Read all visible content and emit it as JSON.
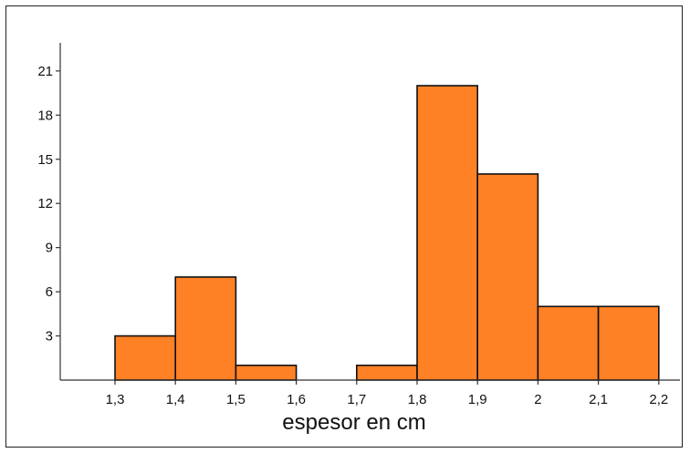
{
  "chart_data": {
    "type": "bar",
    "subtype": "histogram",
    "title": "",
    "xlabel": "espesor en cm",
    "ylabel": "",
    "x_ticks": [
      "1,3",
      "1,4",
      "1,5",
      "1,6",
      "1,7",
      "1,8",
      "1,9",
      "2",
      "2,1",
      "2,2"
    ],
    "y_ticks": [
      "3",
      "6",
      "9",
      "12",
      "15",
      "18",
      "21"
    ],
    "bins": [
      {
        "from": 1.3,
        "to": 1.4,
        "count": 3
      },
      {
        "from": 1.4,
        "to": 1.5,
        "count": 7
      },
      {
        "from": 1.5,
        "to": 1.6,
        "count": 1
      },
      {
        "from": 1.6,
        "to": 1.7,
        "count": 0
      },
      {
        "from": 1.7,
        "to": 1.8,
        "count": 1
      },
      {
        "from": 1.8,
        "to": 1.9,
        "count": 20
      },
      {
        "from": 1.9,
        "to": 2.0,
        "count": 14
      },
      {
        "from": 2.0,
        "to": 2.1,
        "count": 5
      },
      {
        "from": 2.1,
        "to": 2.2,
        "count": 5
      }
    ],
    "xlim": [
      1.3,
      2.2
    ],
    "ylim": [
      0,
      23
    ],
    "grid": false,
    "legend": "none",
    "bar_color": "#FF8126",
    "edge_color": "#111111"
  }
}
